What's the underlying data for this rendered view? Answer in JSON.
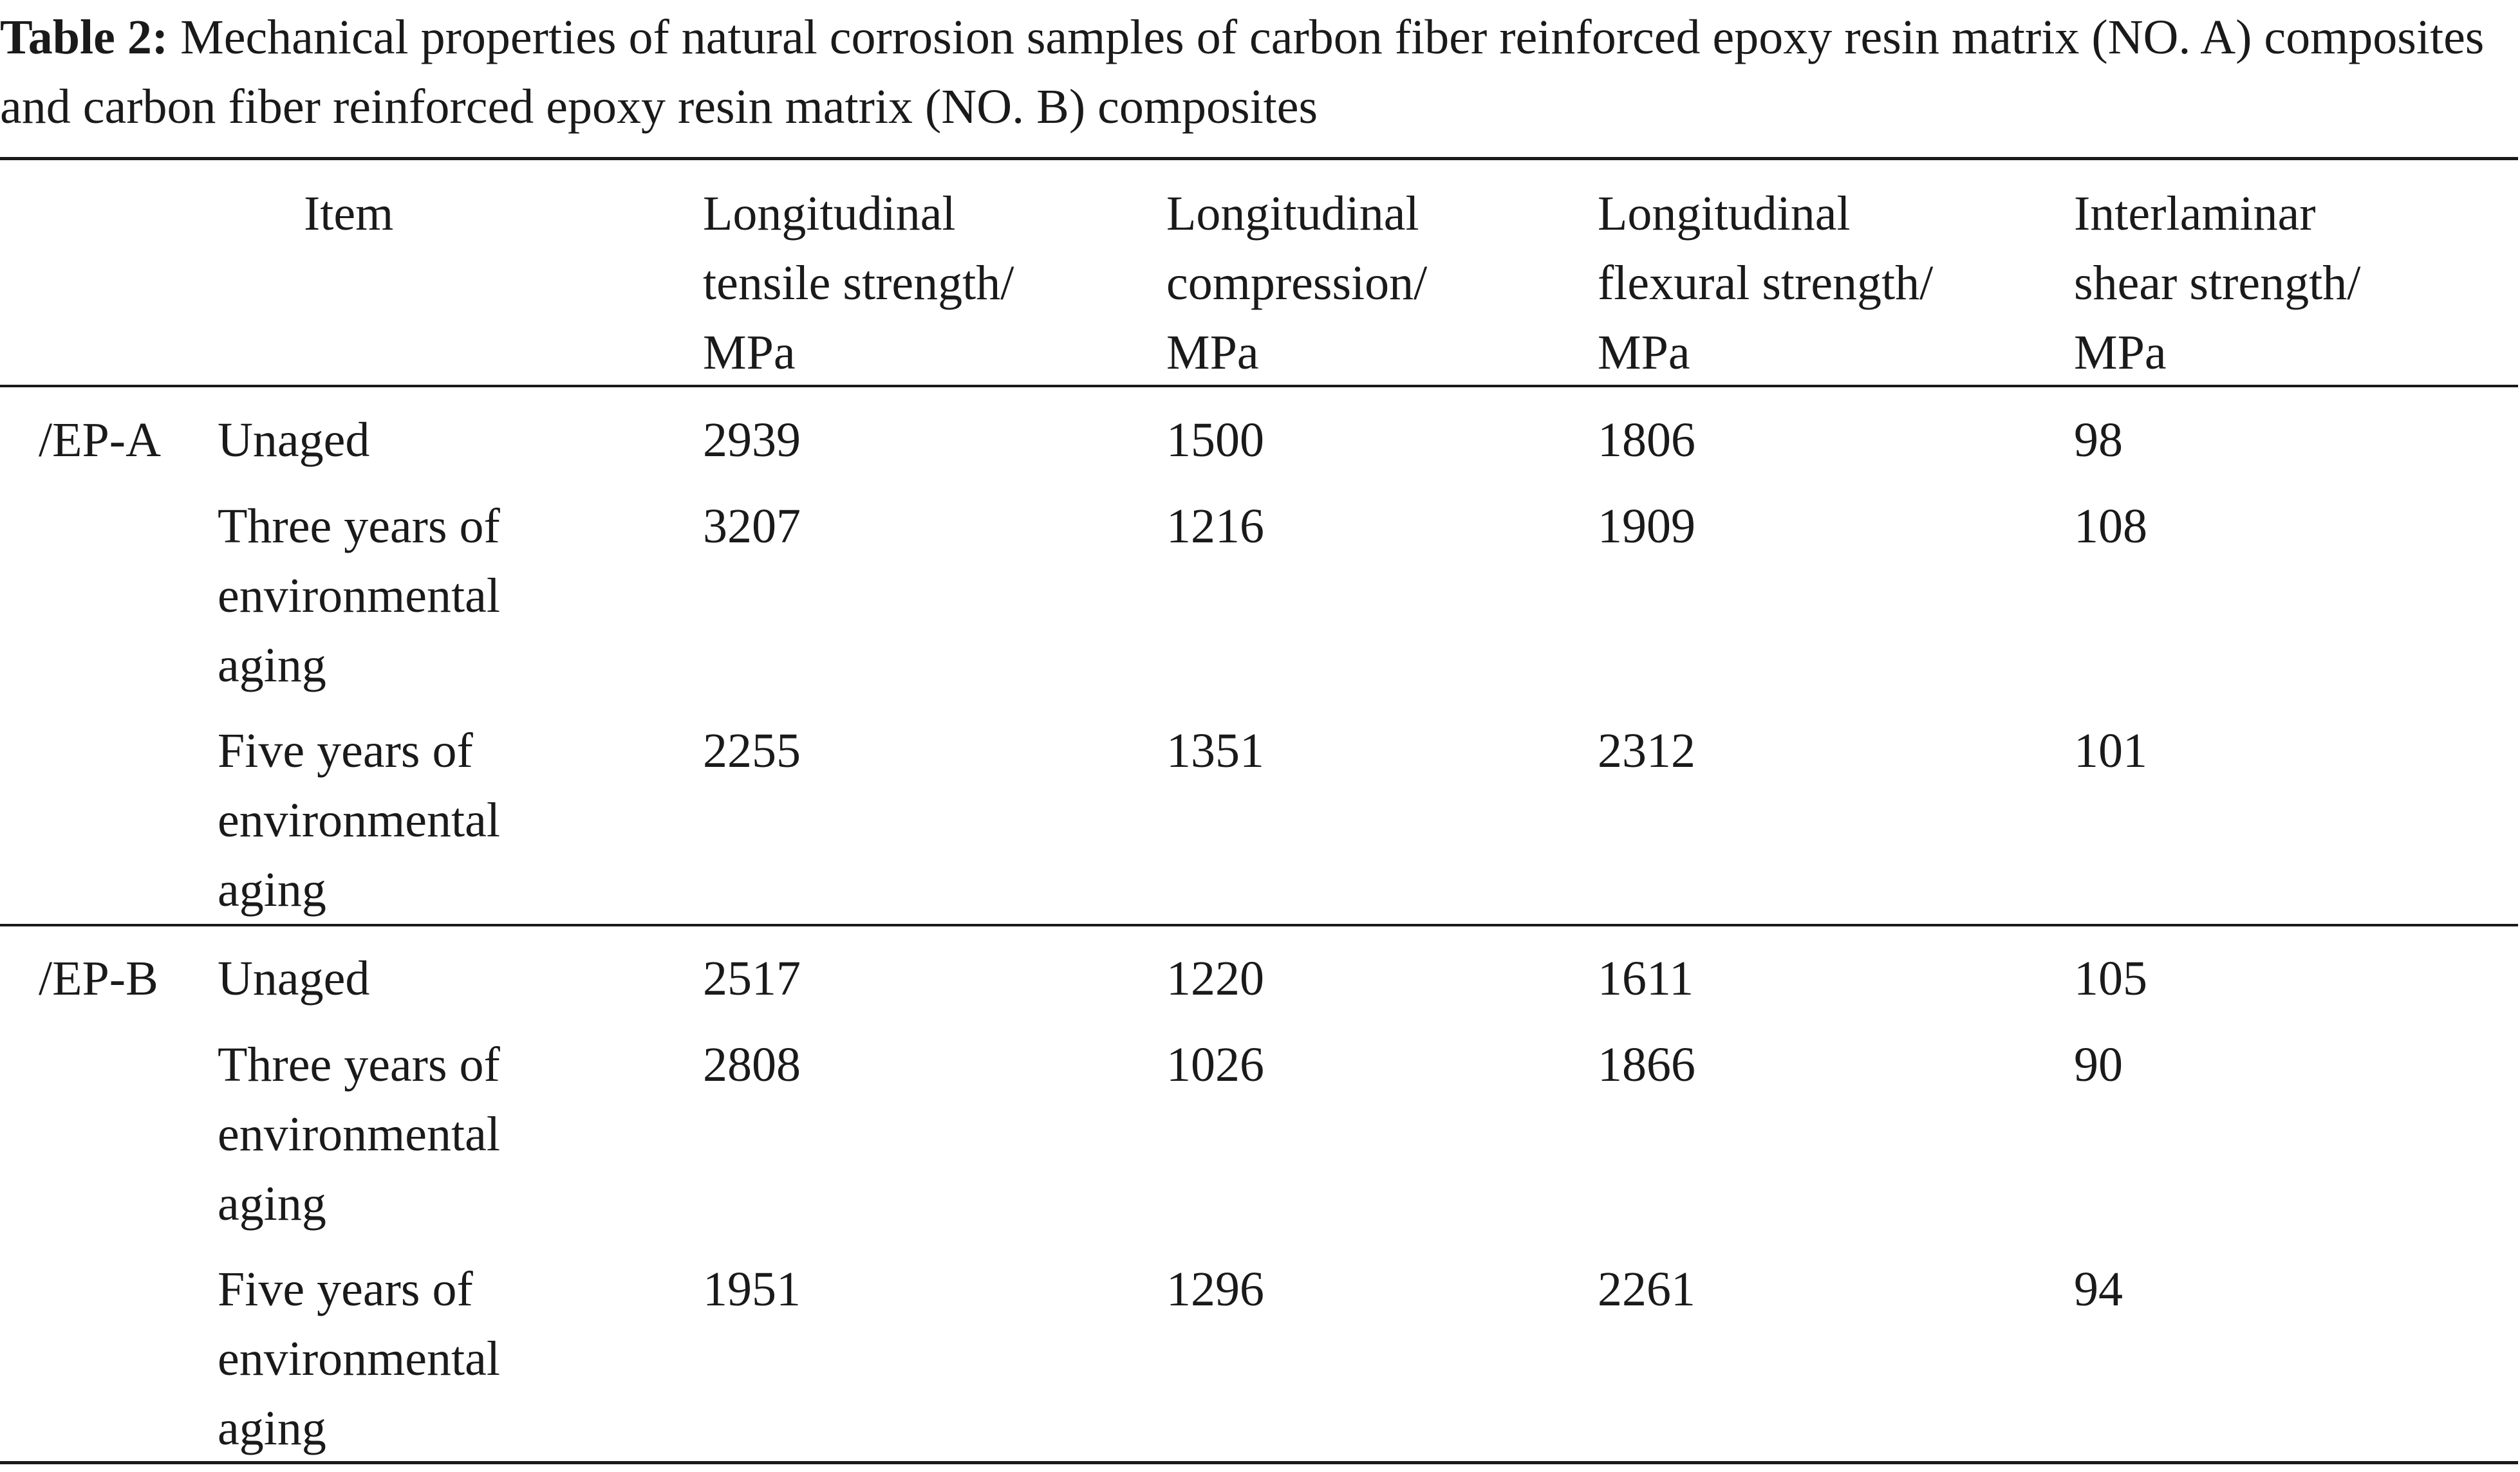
{
  "caption": {
    "label": "Table 2:",
    "text": " Mechanical properties of natural corrosion samples of carbon fiber reinforced epoxy resin matrix (NO. A) composites and carbon fiber reinforced epoxy resin matrix (NO. B) composites"
  },
  "table": {
    "headers": {
      "item": "Item",
      "col1": "Longitudinal\ntensile strength/\nMPa",
      "col2": "Longitudinal\ncompression/\nMPa",
      "col3": "Longitudinal\nflexural strength/\nMPa",
      "col4": "Interlaminar\nshear strength/\nMPa"
    },
    "groups": [
      {
        "name": "/EP-A",
        "rows": [
          {
            "condition": "Unaged",
            "values": [
              "2939",
              "1500",
              "1806",
              "98"
            ]
          },
          {
            "condition": "Three years of\nenvironmental\naging",
            "values": [
              "3207",
              "1216",
              "1909",
              "108"
            ]
          },
          {
            "condition": "Five years of\nenvironmental\naging",
            "values": [
              "2255",
              "1351",
              "2312",
              "101"
            ]
          }
        ]
      },
      {
        "name": "/EP-B",
        "rows": [
          {
            "condition": "Unaged",
            "values": [
              "2517",
              "1220",
              "1611",
              "105"
            ]
          },
          {
            "condition": "Three years of\nenvironmental\naging",
            "values": [
              "2808",
              "1026",
              "1866",
              "90"
            ]
          },
          {
            "condition": "Five years of\nenvironmental\naging",
            "values": [
              "1951",
              "1296",
              "2261",
              "94"
            ]
          }
        ]
      }
    ]
  }
}
